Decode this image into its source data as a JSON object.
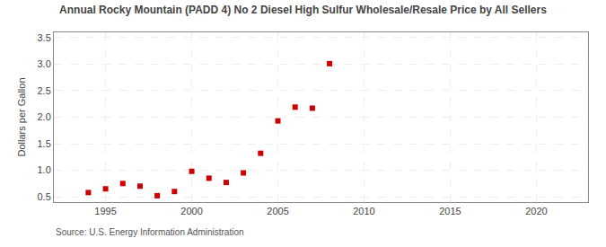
{
  "chart_data": {
    "type": "scatter",
    "title": "Annual Rocky Mountain (PADD 4) No 2 Diesel High Sulfur Wholesale/Resale Price by All Sellers",
    "ylabel": "Dollars per Gallon",
    "annotations": [
      "Source: U.S. Energy Information Administration"
    ],
    "x": [
      1994,
      1995,
      1996,
      1997,
      1998,
      1999,
      2000,
      2001,
      2002,
      2003,
      2004,
      2005,
      2006,
      2007,
      2008
    ],
    "values": [
      0.58,
      0.65,
      0.75,
      0.7,
      0.52,
      0.6,
      0.98,
      0.85,
      0.77,
      0.95,
      1.32,
      1.93,
      2.19,
      2.17,
      3.01
    ],
    "color": "#cc0000",
    "marker": "square",
    "xlim": [
      1992,
      2023
    ],
    "ylim": [
      0.4,
      3.6
    ],
    "xticks": [
      1995,
      2000,
      2005,
      2010,
      2015,
      2020
    ],
    "yticks": [
      0.5,
      {
        "value": 1,
        "label": "1.0"
      },
      1.5,
      {
        "value": 2,
        "label": "2.0"
      },
      2.5,
      {
        "value": 3,
        "label": "3.0"
      },
      3.5
    ],
    "grid": true
  }
}
